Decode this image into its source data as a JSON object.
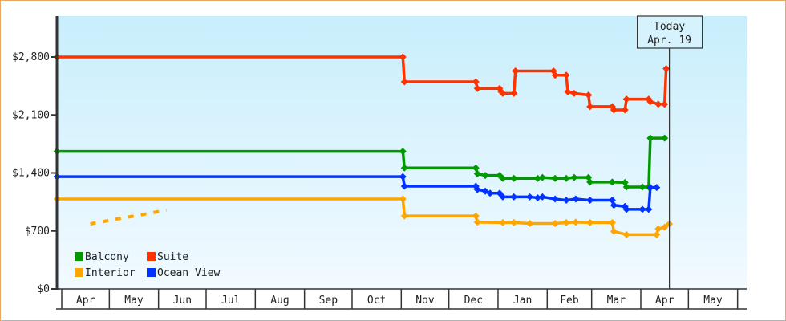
{
  "chart_data": {
    "type": "line",
    "title": "",
    "xlabel": "",
    "ylabel": "",
    "xlim": [
      "Mar 29",
      "Jun 6"
    ],
    "ylim": [
      0,
      3290
    ],
    "grid": false,
    "legend_placement": "bottom-left",
    "y_ticks": [
      {
        "value": 0,
        "label": "$0"
      },
      {
        "value": 700,
        "label": "$700"
      },
      {
        "value": 1400,
        "label": "$1,400"
      },
      {
        "value": 2100,
        "label": "$2,100"
      },
      {
        "value": 2800,
        "label": "$2,800"
      }
    ],
    "x_ticks": [
      "Apr",
      "May",
      "Jun",
      "Jul",
      "Aug",
      "Sep",
      "Oct",
      "Nov",
      "Dec",
      "Jan",
      "Feb",
      "Mar",
      "Apr",
      "May"
    ],
    "today_marker": {
      "line1": "Today",
      "line2": "Apr. 19",
      "date": "Apr 19"
    },
    "legend": [
      "Balcony",
      "Suite",
      "Interior",
      "Ocean View"
    ],
    "series": [
      {
        "name": "Suite",
        "color": "#ff3300",
        "points": [
          [
            "Mar 29",
            2800
          ],
          [
            "Nov 2",
            2800
          ],
          [
            "Nov 3",
            2500
          ],
          [
            "Dec 18",
            2500
          ],
          [
            "Dec 19",
            2420
          ],
          [
            "Jan 2",
            2420
          ],
          [
            "Jan 3",
            2380
          ],
          [
            "Jan 4",
            2360
          ],
          [
            "Jan 11",
            2360
          ],
          [
            "Jan 12",
            2630
          ],
          [
            "Feb 5",
            2630
          ],
          [
            "Feb 6",
            2580
          ],
          [
            "Feb 13",
            2580
          ],
          [
            "Feb 14",
            2380
          ],
          [
            "Feb 18",
            2360
          ],
          [
            "Feb 27",
            2340
          ],
          [
            "Feb 28",
            2200
          ],
          [
            "Mar 14",
            2200
          ],
          [
            "Mar 15",
            2160
          ],
          [
            "Mar 22",
            2160
          ],
          [
            "Mar 23",
            2290
          ],
          [
            "Apr 6",
            2290
          ],
          [
            "Apr 7",
            2260
          ],
          [
            "Apr 12",
            2230
          ],
          [
            "Apr 16",
            2230
          ],
          [
            "Apr 17",
            2660
          ]
        ]
      },
      {
        "name": "Balcony",
        "color": "#009900",
        "points": [
          [
            "Mar 29",
            1660
          ],
          [
            "Nov 2",
            1660
          ],
          [
            "Nov 3",
            1460
          ],
          [
            "Dec 18",
            1460
          ],
          [
            "Dec 19",
            1390
          ],
          [
            "Dec 24",
            1370
          ],
          [
            "Jan 2",
            1370
          ],
          [
            "Jan 4",
            1335
          ],
          [
            "Jan 11",
            1335
          ],
          [
            "Jan 26",
            1335
          ],
          [
            "Jan 29",
            1345
          ],
          [
            "Feb 6",
            1335
          ],
          [
            "Feb 13",
            1335
          ],
          [
            "Feb 18",
            1345
          ],
          [
            "Feb 27",
            1345
          ],
          [
            "Feb 28",
            1290
          ],
          [
            "Mar 14",
            1290
          ],
          [
            "Mar 22",
            1285
          ],
          [
            "Mar 23",
            1230
          ],
          [
            "Apr 2",
            1230
          ],
          [
            "Apr 6",
            1230
          ],
          [
            "Apr 7",
            1820
          ],
          [
            "Apr 16",
            1820
          ]
        ]
      },
      {
        "name": "Ocean View",
        "color": "#0033ff",
        "points": [
          [
            "Mar 29",
            1355
          ],
          [
            "Nov 2",
            1355
          ],
          [
            "Nov 3",
            1240
          ],
          [
            "Dec 18",
            1240
          ],
          [
            "Dec 19",
            1200
          ],
          [
            "Dec 24",
            1180
          ],
          [
            "Dec 27",
            1155
          ],
          [
            "Jan 2",
            1155
          ],
          [
            "Jan 4",
            1110
          ],
          [
            "Jan 11",
            1110
          ],
          [
            "Jan 21",
            1110
          ],
          [
            "Jan 26",
            1100
          ],
          [
            "Jan 29",
            1110
          ],
          [
            "Feb 6",
            1085
          ],
          [
            "Feb 13",
            1070
          ],
          [
            "Feb 19",
            1085
          ],
          [
            "Feb 28",
            1070
          ],
          [
            "Mar 14",
            1070
          ],
          [
            "Mar 15",
            1010
          ],
          [
            "Mar 22",
            995
          ],
          [
            "Mar 23",
            960
          ],
          [
            "Apr 2",
            960
          ],
          [
            "Apr 6",
            960
          ],
          [
            "Apr 7",
            1225
          ],
          [
            "Apr 11",
            1225
          ]
        ]
      },
      {
        "name": "Interior",
        "color": "#ffa500",
        "points": [
          [
            "Mar 29",
            1085
          ],
          [
            "Nov 2",
            1085
          ],
          [
            "Nov 3",
            880
          ],
          [
            "Dec 18",
            880
          ],
          [
            "Dec 19",
            805
          ],
          [
            "Jan 4",
            800
          ],
          [
            "Jan 11",
            800
          ],
          [
            "Jan 21",
            790
          ],
          [
            "Feb 6",
            790
          ],
          [
            "Feb 13",
            800
          ],
          [
            "Feb 19",
            805
          ],
          [
            "Feb 28",
            800
          ],
          [
            "Mar 14",
            800
          ],
          [
            "Mar 15",
            695
          ],
          [
            "Mar 23",
            655
          ],
          [
            "Apr 11",
            655
          ],
          [
            "Apr 12",
            725
          ],
          [
            "Apr 16",
            745
          ],
          [
            "Apr 19",
            785
          ]
        ],
        "projection": [
          [
            "Apr 19",
            785
          ],
          [
            "Jun 6",
            950
          ]
        ]
      }
    ]
  }
}
